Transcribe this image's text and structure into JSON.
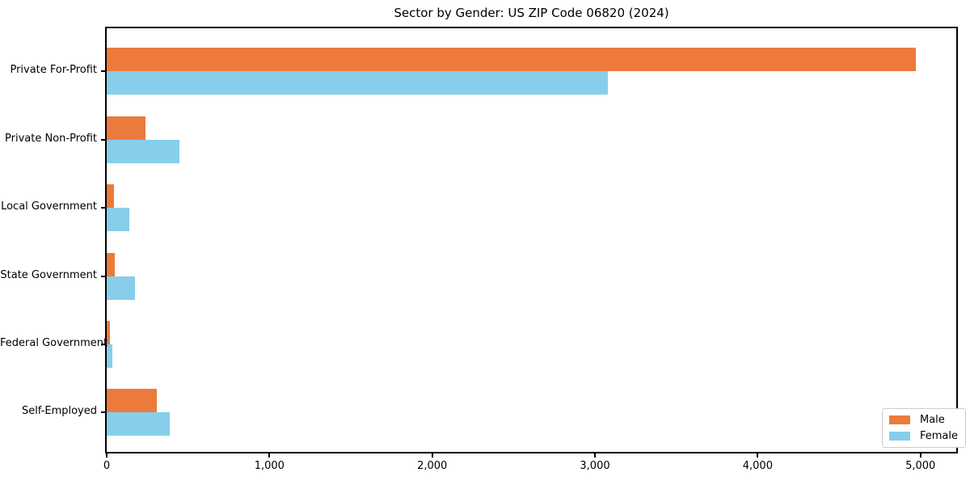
{
  "title": "Sector by Gender: US ZIP Code 06820 (2024)",
  "colors": {
    "male": "#EC7A3C",
    "female": "#87CEEB",
    "axis": "#000000",
    "legend_border": "#CCCCCC",
    "background": "#FFFFFF"
  },
  "legend": {
    "items": [
      "Male",
      "Female"
    ],
    "position": "lower right"
  },
  "chart_data": {
    "type": "bar",
    "orientation": "horizontal",
    "title": "Sector by Gender: US ZIP Code 06820 (2024)",
    "categories": [
      "Private For-Profit",
      "Private Non-Profit",
      "Local Government",
      "State Government",
      "Federal Government",
      "Self-Employed"
    ],
    "series": [
      {
        "name": "Male",
        "color": "#EC7A3C",
        "values": [
          4970,
          240,
          45,
          50,
          22,
          310
        ]
      },
      {
        "name": "Female",
        "color": "#87CEEB",
        "values": [
          3080,
          445,
          140,
          175,
          33,
          385
        ]
      }
    ],
    "xlabel": "",
    "ylabel": "",
    "xlim": [
      0,
      5220
    ],
    "xticks": [
      0,
      1000,
      2000,
      3000,
      4000,
      5000
    ],
    "xtick_labels": [
      "0",
      "1,000",
      "2,000",
      "3,000",
      "4,000",
      "5,000"
    ],
    "legend_position": "lower right",
    "grid": false
  }
}
